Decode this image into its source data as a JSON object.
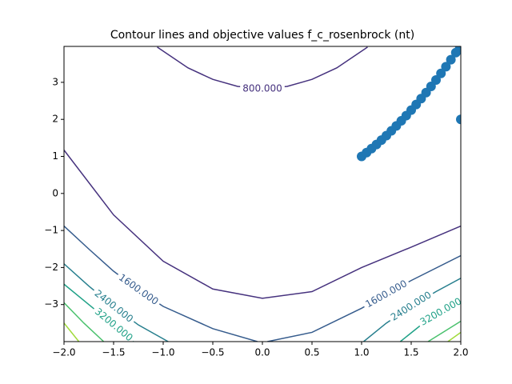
{
  "chart_data": {
    "type": "contour",
    "title": "Contour lines and objective values f_c_rosenbrock (nt)",
    "xlim": [
      -2,
      2
    ],
    "ylim": [
      -4,
      3.97
    ],
    "xticks": [
      {
        "value": -2,
        "label": "−2.0"
      },
      {
        "value": -1.5,
        "label": "−1.5"
      },
      {
        "value": -1,
        "label": "−1.0"
      },
      {
        "value": -0.5,
        "label": "−0.5"
      },
      {
        "value": 0,
        "label": "0.0"
      },
      {
        "value": 0.5,
        "label": "0.5"
      },
      {
        "value": 1,
        "label": "1.0"
      },
      {
        "value": 1.5,
        "label": "1.5"
      },
      {
        "value": 2,
        "label": "2.0"
      }
    ],
    "yticks": [
      {
        "value": -3,
        "label": "−3"
      },
      {
        "value": -2,
        "label": "−2"
      },
      {
        "value": -1,
        "label": "−1"
      },
      0,
      1,
      2,
      3
    ],
    "contours": [
      {
        "color": "#46327e",
        "lines": [
          {
            "x": [
              -1.06,
              -0.75,
              -0.5,
              -0.25,
              0,
              0.25,
              0.5,
              0.75,
              1.06
            ],
            "y": [
              3.95,
              3.39,
              3.08,
              2.89,
              2.83,
              2.89,
              3.08,
              3.39,
              3.95
            ],
            "label": "800.000"
          },
          {
            "x": [
              -2,
              -1.5,
              -1,
              -0.5,
              0,
              0.5,
              1,
              1.5,
              2
            ],
            "y": [
              1.17,
              -0.58,
              -1.83,
              -2.58,
              -2.83,
              -2.65,
              -2.0,
              -1.45,
              -0.88
            ]
          }
        ]
      },
      {
        "color": "#365c8d",
        "lines": [
          {
            "x": [
              -2,
              -1.75,
              -1.5,
              -1.25,
              -1,
              -0.5,
              -0.05
            ],
            "y": [
              -0.88,
              -1.5,
              -2.1,
              -2.6,
              -3.05,
              -3.65,
              -4
            ],
            "label": "1600.000"
          },
          {
            "x": [
              0.05,
              0.5,
              1,
              1.25,
              1.5,
              2
            ],
            "y": [
              -4,
              -3.75,
              -3.1,
              -2.72,
              -2.35,
              -1.68
            ],
            "label": "1600.000"
          }
        ]
      },
      {
        "color": "#277f8e",
        "lines": [
          {
            "x": [
              -2,
              -1.75,
              -1.5,
              -1.25,
              -0.95
            ],
            "y": [
              -1.9,
              -2.5,
              -3.05,
              -3.55,
              -4
            ],
            "label": "2400.000"
          },
          {
            "x": [
              1.02,
              1.25,
              1.5,
              1.75,
              2
            ],
            "y": [
              -4,
              -3.5,
              -3.05,
              -2.65,
              -2.29
            ],
            "label": "2400.000"
          }
        ]
      },
      {
        "color": "#1fa187",
        "lines": [
          {
            "x": [
              -2,
              -1.75,
              -1.5,
              -1.3
            ],
            "y": [
              -2.45,
              -3.0,
              -3.55,
              -4
            ],
            "label": "3200.000"
          },
          {
            "x": [
              1.39,
              1.6,
              1.8,
              2
            ],
            "y": [
              -4,
              -3.55,
              -3.2,
              -2.94
            ],
            "label": "3200.000"
          }
        ]
      },
      {
        "color": "#4ac16d",
        "lines": [
          {
            "x": [
              -2,
              -1.8,
              -1.6
            ],
            "y": [
              -2.95,
              -3.5,
              -4
            ]
          },
          {
            "x": [
              1.67,
              1.85,
              2
            ],
            "y": [
              -4,
              -3.7,
              -3.45
            ]
          }
        ]
      },
      {
        "color": "#a0da39",
        "lines": [
          {
            "x": [
              -2,
              -1.85
            ],
            "y": [
              -3.5,
              -4
            ]
          },
          {
            "x": [
              1.87,
              2
            ],
            "y": [
              -4,
              -3.75
            ]
          }
        ]
      }
    ],
    "points": {
      "color": "#1f77b4",
      "x": [
        1,
        1.05,
        1.1,
        1.15,
        1.2,
        1.25,
        1.3,
        1.35,
        1.4,
        1.45,
        1.5,
        1.55,
        1.6,
        1.65,
        1.7,
        1.75,
        1.8,
        1.85,
        1.9,
        1.95,
        1.99,
        2
      ],
      "y": [
        1,
        1.1025,
        1.21,
        1.3225,
        1.44,
        1.5625,
        1.69,
        1.8225,
        1.96,
        2.1025,
        2.25,
        2.4025,
        2.56,
        2.7225,
        2.89,
        3.0625,
        3.24,
        3.4225,
        3.61,
        3.8025,
        3.96,
        2
      ]
    }
  }
}
